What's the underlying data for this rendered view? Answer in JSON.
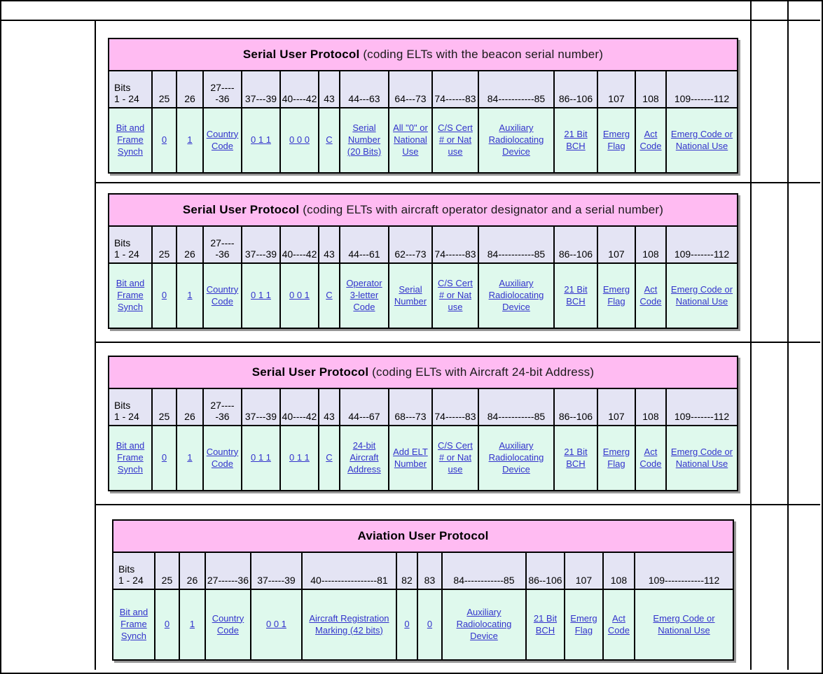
{
  "colors": {
    "title_bg": "#ffbbf2",
    "bits_bg": "#e4e4f4",
    "links_bg": "#dff9ed",
    "link_blue": "#3333cc",
    "border": "#000000",
    "shadow": "#969696",
    "page_bg": "#ffffff"
  },
  "tables": [
    {
      "title_bold": "Serial User Protocol",
      "title_note": " (coding ELTs with the beacon serial number)",
      "bits": [
        "Bits\n1 - 24",
        "25",
        "26",
        "27-----36",
        "37---39",
        "40----42",
        "43",
        "44---63",
        "64---73",
        "74------83",
        "84-----------85",
        "86--106",
        "107",
        "108",
        "109-------112"
      ],
      "fields": [
        "Bit and Frame Synch",
        "0",
        "1",
        "Country Code",
        "0 1 1",
        "0 0 0",
        "C",
        "Serial Number (20 Bits)",
        "All \"0\" or National Use",
        "C/S Cert # or Nat use",
        "Auxiliary Radiolocating Device",
        "21 Bit BCH",
        "Emerg Flag",
        "Act Code",
        "Emerg Code or National Use"
      ]
    },
    {
      "title_bold": "Serial User Protocol",
      "title_note": " (coding ELTs with aircraft operator designator and a serial number)",
      "bits": [
        "Bits\n1 - 24",
        "25",
        "26",
        "27-----36",
        "37---39",
        "40----42",
        "43",
        "44---61",
        "62---73",
        "74------83",
        "84-----------85",
        "86--106",
        "107",
        "108",
        "109-------112"
      ],
      "fields": [
        "Bit and Frame Synch",
        "0",
        "1",
        "Country Code",
        "0 1 1",
        "0 0 1",
        "C",
        "Operator 3-letter Code",
        "Serial Number",
        "C/S Cert # or Nat use",
        "Auxiliary Radiolocating Device",
        "21 Bit BCH",
        "Emerg Flag",
        "Act Code",
        "Emerg Code or National Use"
      ]
    },
    {
      "title_bold": "Serial User Protocol",
      "title_note": " (coding ELTs with Aircraft 24-bit Address)",
      "bits": [
        "Bits\n1 - 24",
        "25",
        "26",
        "27-----36",
        "37---39",
        "40----42",
        "43",
        "44---67",
        "68---73",
        "74------83",
        "84-----------85",
        "86--106",
        "107",
        "108",
        "109-------112"
      ],
      "fields": [
        "Bit and Frame Synch",
        "0",
        "1",
        "Country Code",
        "0 1 1",
        "0 1 1",
        "C",
        "24-bit Aircraft Address",
        "Add ELT Number",
        "C/S Cert # or Nat use",
        "Auxiliary Radiolocating Device",
        "21 Bit BCH",
        "Emerg Flag",
        "Act Code",
        "Emerg Code or National Use"
      ]
    },
    {
      "title_bold": "Aviation User Protocol",
      "title_note": "",
      "bits": [
        "Bits\n1 - 24",
        "25",
        "26",
        "27------36",
        "37-----39",
        "40-----------------81",
        "82",
        "83",
        "84------------85",
        "86--106",
        "107",
        "108",
        "109------------112"
      ],
      "fields": [
        "Bit and Frame Synch",
        "0",
        "1",
        "Country Code",
        "0 0 1",
        "Aircraft Registration Marking (42 bits)",
        "0",
        "0",
        "Auxiliary Radiolocating Device",
        "21 Bit BCH",
        "Emerg Flag",
        "Act Code",
        "Emerg Code or National Use"
      ]
    }
  ]
}
